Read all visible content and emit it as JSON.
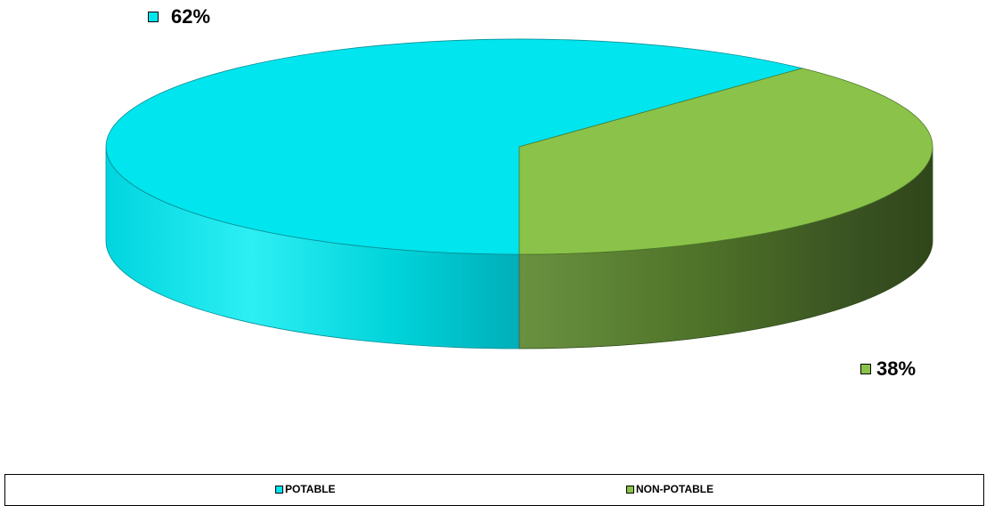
{
  "chart_data": {
    "type": "pie",
    "title": "",
    "style": "3d",
    "categories": [
      "POTABLE",
      "NON-POTABLE"
    ],
    "values": [
      62,
      38
    ],
    "data_labels": [
      "62%",
      "38%"
    ],
    "colors": {
      "POTABLE": "#00E5EE",
      "NON-POTABLE": "#8BC34A"
    },
    "legend_position": "bottom"
  }
}
